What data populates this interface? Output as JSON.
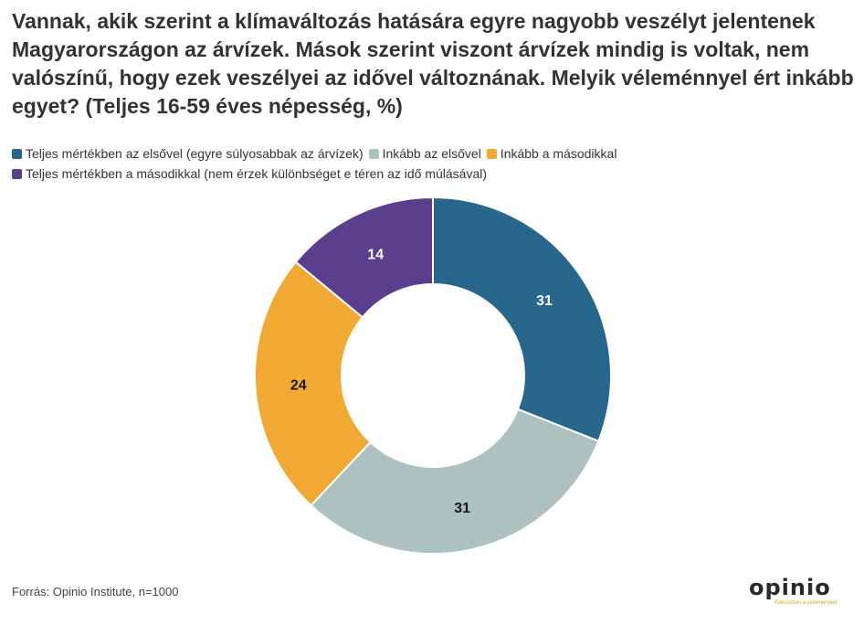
{
  "title": "Vannak, akik szerint a klímaváltozás hatására egyre nagyobb veszélyt jelentenek Magyarországon az árvízek. Mások szerint viszont árvízek mindig is voltak, nem valószínű, hogy ezek veszélyei az idővel változnának. Melyik véleménnyel ért inkább egyet? (Teljes 16-59 éves népesség, %)",
  "source": "Forrás: Opinio Institute, n=1000",
  "logo": {
    "text": "opinio",
    "tagline": "Fókuszban a véleményed"
  },
  "chart_data": {
    "type": "pie",
    "variant": "donut",
    "legend_position": "top-left",
    "categories": [
      "Teljes mértékben az elsővel (egyre súlyosabbak az árvízek)",
      "Inkább az elsővel",
      "Inkább a másodikkal",
      "Teljes mértékben a másodikkal (nem érzek különbséget e téren az idő múlásával)"
    ],
    "values": [
      31,
      31,
      24,
      14
    ],
    "colors": [
      "#27678d",
      "#acc1c0",
      "#f2a933",
      "#5b3e8c"
    ],
    "label_colors": [
      "#ffffff",
      "#1a1a1a",
      "#1a1a1a",
      "#ffffff"
    ],
    "labels": [
      "31",
      "31",
      "24",
      "14"
    ]
  }
}
